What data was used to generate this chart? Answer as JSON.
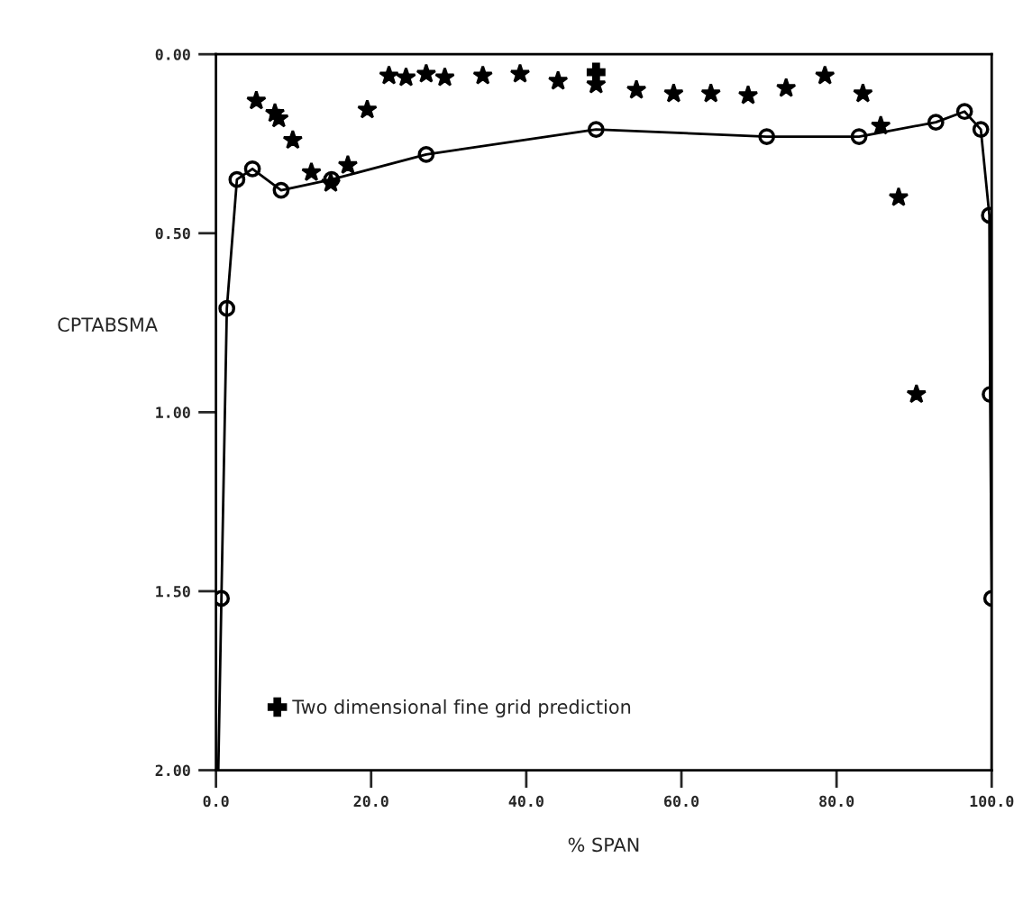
{
  "chart_data": {
    "type": "line",
    "xlabel": "% SPAN",
    "ylabel": "CPTABSMA",
    "xlim": [
      0,
      100
    ],
    "ylim": [
      2.0,
      0.0
    ],
    "xticks": [
      {
        "value": 0,
        "label": "0.0"
      },
      {
        "value": 20,
        "label": "20.0"
      },
      {
        "value": 40,
        "label": "40.0"
      },
      {
        "value": 60,
        "label": "60.0"
      },
      {
        "value": 80,
        "label": "80.0"
      },
      {
        "value": 100,
        "label": "100.0"
      }
    ],
    "yticks": [
      {
        "value": 0,
        "label": "0.00"
      },
      {
        "value": 0.5,
        "label": "0.50"
      },
      {
        "value": 1.0,
        "label": "1.00"
      },
      {
        "value": 1.5,
        "label": "1.50"
      },
      {
        "value": 2.0,
        "label": "2.00"
      }
    ],
    "grid": false,
    "legend": "bottom left",
    "series": [
      {
        "marker": "none",
        "color": "#000000",
        "x": [
          0.3,
          0.7,
          1.4,
          2.7,
          4.7,
          8.4,
          14.9,
          27.1,
          49.0,
          71.0,
          82.9,
          92.8,
          96.5,
          98.6,
          99.7,
          99.8,
          100.0,
          100.0
        ],
        "values": [
          2.0,
          1.52,
          0.71,
          0.35,
          0.32,
          0.38,
          0.35,
          0.28,
          0.21,
          0.23,
          0.23,
          0.19,
          0.16,
          0.21,
          0.45,
          0.95,
          1.52,
          2.0
        ]
      },
      {
        "type": "scatter",
        "marker": "circle",
        "color": "#000000",
        "x": [
          0.7,
          1.4,
          2.7,
          4.7,
          8.4,
          14.9,
          27.1,
          49.0,
          71.0,
          82.9,
          92.8,
          96.5,
          98.6,
          99.7,
          99.8,
          100.0
        ],
        "values": [
          1.52,
          0.71,
          0.35,
          0.32,
          0.38,
          0.35,
          0.28,
          0.21,
          0.23,
          0.23,
          0.19,
          0.16,
          0.21,
          0.45,
          0.95,
          1.52
        ]
      },
      {
        "type": "scatter",
        "marker": "star",
        "color": "#000000",
        "x": [
          5.2,
          7.6,
          8.1,
          9.9,
          12.3,
          14.8,
          17.0,
          19.5,
          22.3,
          24.5,
          27.1,
          29.5,
          34.4,
          39.2,
          44.1,
          49.0,
          54.2,
          59.0,
          63.8,
          68.6,
          73.5,
          78.5,
          83.4,
          85.7,
          88.0,
          90.3
        ],
        "values": [
          0.13,
          0.165,
          0.18,
          0.24,
          0.33,
          0.36,
          0.31,
          0.155,
          0.06,
          0.065,
          0.055,
          0.065,
          0.06,
          0.055,
          0.075,
          0.085,
          0.1,
          0.11,
          0.11,
          0.115,
          0.095,
          0.06,
          0.11,
          0.2,
          0.4,
          0.95
        ]
      },
      {
        "type": "scatter",
        "marker": "cross",
        "name": "Two dimensional fine grid prediction",
        "color": "#000000",
        "x": [
          49.0
        ],
        "values": [
          0.05
        ]
      }
    ]
  }
}
